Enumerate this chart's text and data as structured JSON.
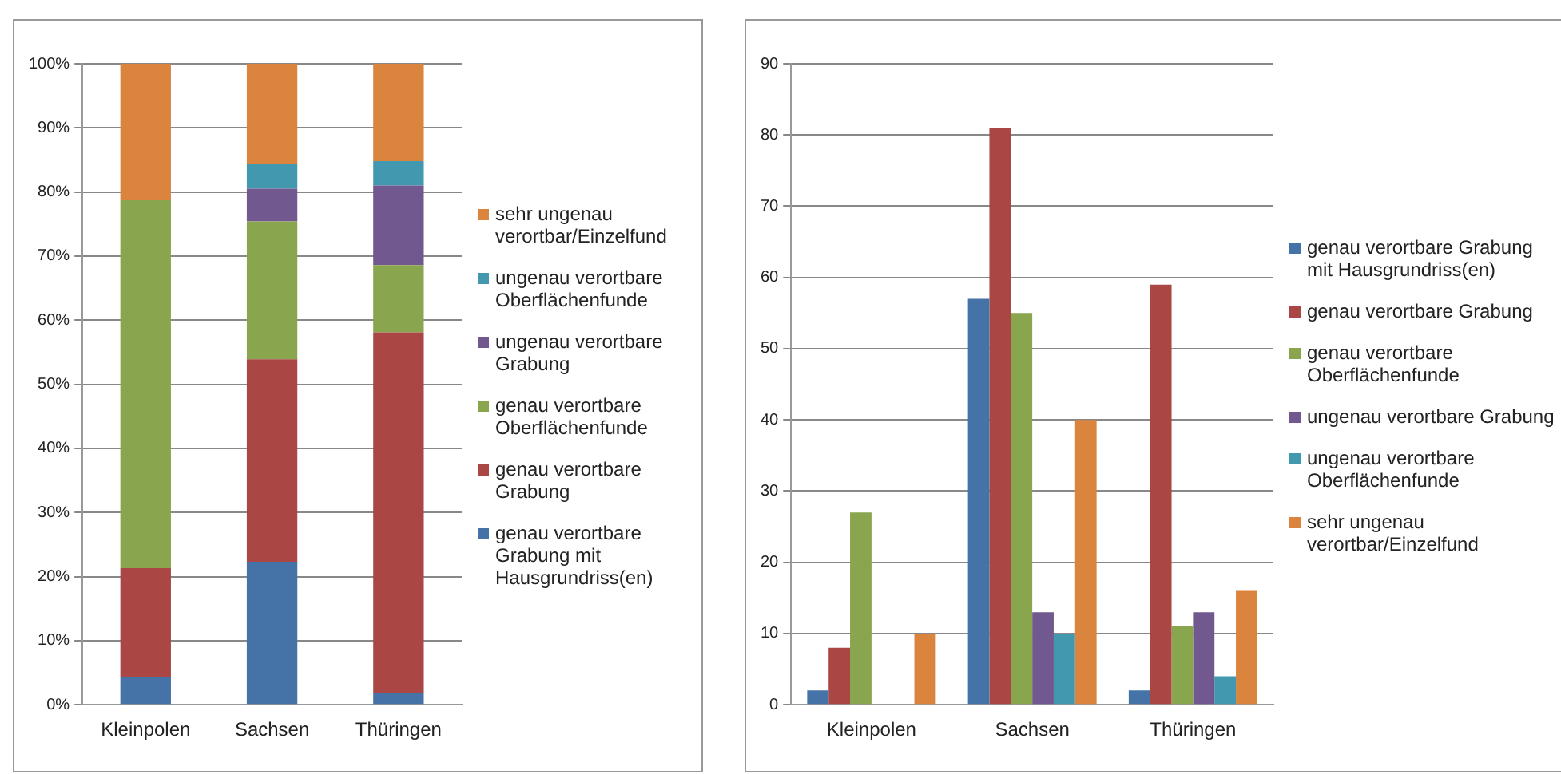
{
  "chart_data": [
    {
      "type": "bar",
      "stacked": true,
      "categories": [
        "Kleinpolen",
        "Sachsen",
        "Thüringen"
      ],
      "series": [
        {
          "name": "genau verortbare Grabung mit Hausgrundriss(en)",
          "color": "#4572a7",
          "values": [
            4.3,
            22.3,
            1.9
          ]
        },
        {
          "name": "genau verortbare Grabung",
          "color": "#aa4643",
          "values": [
            17.0,
            31.6,
            56.2
          ]
        },
        {
          "name": "genau verortbare Oberflächenfunde",
          "color": "#89a54e",
          "values": [
            57.4,
            21.5,
            10.5
          ]
        },
        {
          "name": "ungenau verortbare Grabung",
          "color": "#71588f",
          "values": [
            0,
            5.1,
            12.4
          ]
        },
        {
          "name": "ungenau verortbare Oberflächenfunde",
          "color": "#4198af",
          "values": [
            0,
            3.9,
            3.8
          ]
        },
        {
          "name": "sehr ungenau verortbar/Einzelfund",
          "color": "#db843d",
          "values": [
            21.3,
            15.6,
            15.2
          ]
        }
      ],
      "ylim": [
        0,
        100
      ],
      "yticks": [
        {
          "value": 0,
          "label": "0%"
        },
        {
          "value": 10,
          "label": "10%"
        },
        {
          "value": 20,
          "label": "20%"
        },
        {
          "value": 30,
          "label": "30%"
        },
        {
          "value": 40,
          "label": "40%"
        },
        {
          "value": 50,
          "label": "50%"
        },
        {
          "value": 60,
          "label": "60%"
        },
        {
          "value": 70,
          "label": "70%"
        },
        {
          "value": 80,
          "label": "80%"
        },
        {
          "value": 90,
          "label": "90%"
        },
        {
          "value": 100,
          "label": "100%"
        }
      ],
      "grid": "y",
      "legend": "right"
    },
    {
      "type": "bar",
      "categories": [
        "Kleinpolen",
        "Sachsen",
        "Thüringen"
      ],
      "series": [
        {
          "name": "genau verortbare Grabung mit Hausgrundriss(en)",
          "color": "#4572a7",
          "values": [
            2,
            57,
            2
          ]
        },
        {
          "name": "genau verortbare Grabung",
          "color": "#aa4643",
          "values": [
            8,
            81,
            59
          ]
        },
        {
          "name": "genau verortbare Oberflächenfunde",
          "color": "#89a54e",
          "values": [
            27,
            55,
            11
          ]
        },
        {
          "name": "ungenau verortbare Grabung",
          "color": "#71588f",
          "values": [
            0,
            13,
            13
          ]
        },
        {
          "name": "ungenau verortbare Oberflächenfunde",
          "color": "#4198af",
          "values": [
            0,
            10,
            4
          ]
        },
        {
          "name": "sehr ungenau verortbar/Einzelfund",
          "color": "#db843d",
          "values": [
            10,
            40,
            16
          ]
        }
      ],
      "ylim": [
        0,
        90
      ],
      "yticks": [
        0,
        10,
        20,
        30,
        40,
        50,
        60,
        70,
        80,
        90
      ],
      "grid": "y",
      "legend": "right"
    }
  ]
}
